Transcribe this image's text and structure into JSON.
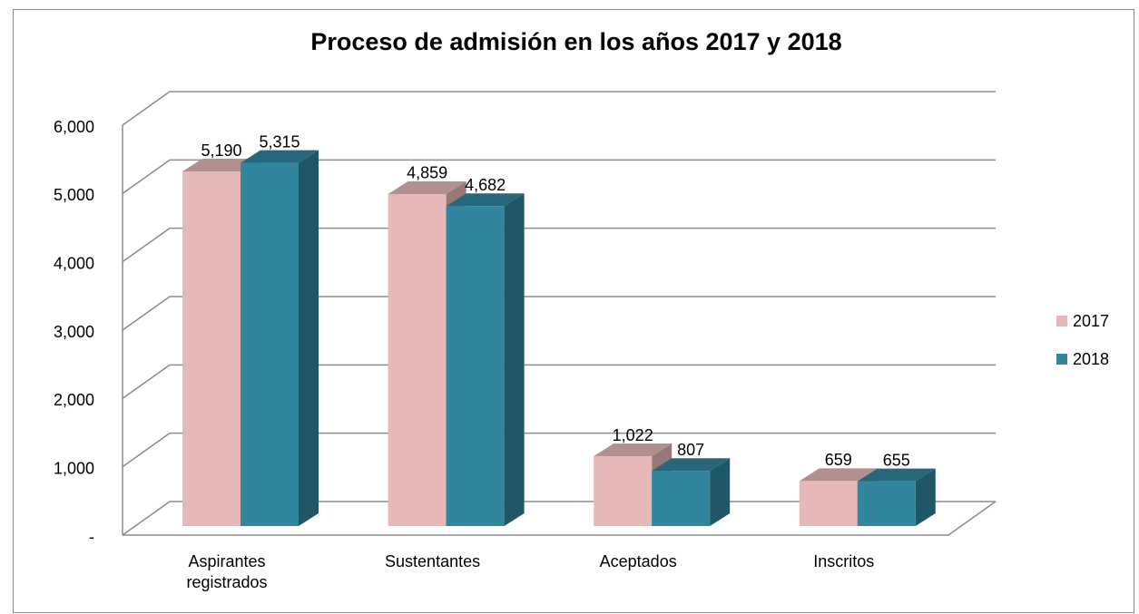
{
  "chart_data": {
    "type": "bar3d",
    "title": "Proceso de admisión en los años 2017 y 2018",
    "categories": [
      "Aspirantes registrados",
      "Sustentantes",
      "Aceptados",
      "Inscritos"
    ],
    "series": [
      {
        "name": "2017",
        "color": "#e6b9b8",
        "values": [
          5190,
          4859,
          1022,
          659
        ],
        "value_labels": [
          "5,190",
          "4,859",
          "1,022",
          "659"
        ]
      },
      {
        "name": "2018",
        "color": "#31859c",
        "values": [
          5315,
          4682,
          807,
          655
        ],
        "value_labels": [
          "5,315",
          "4,682",
          "807",
          "655"
        ]
      }
    ],
    "ylim": [
      0,
      6000
    ],
    "yticks": [
      {
        "value": 0,
        "label": "-"
      },
      {
        "value": 1000,
        "label": "1,000"
      },
      {
        "value": 2000,
        "label": "2,000"
      },
      {
        "value": 3000,
        "label": "3,000"
      },
      {
        "value": 4000,
        "label": "4,000"
      },
      {
        "value": 5000,
        "label": "5,000"
      },
      {
        "value": 6000,
        "label": "6,000"
      }
    ],
    "grid": true,
    "legend": "right"
  }
}
